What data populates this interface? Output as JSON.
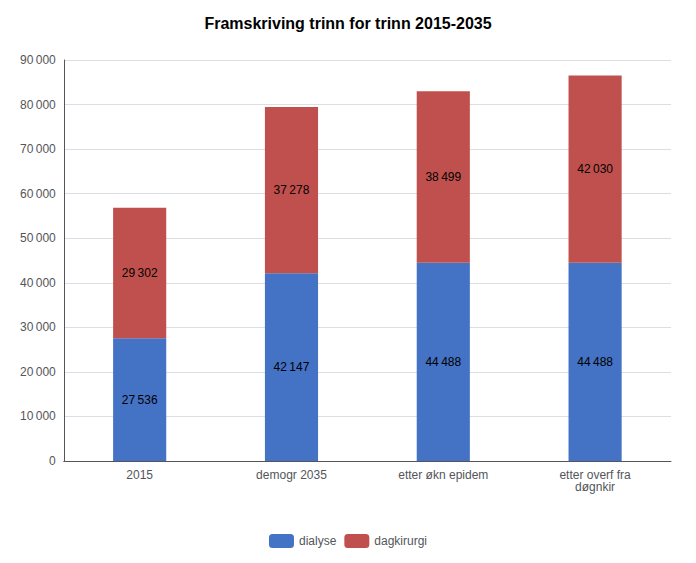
{
  "chart_data": {
    "type": "bar",
    "title": "Framskriving trinn for trinn 2015-2035",
    "categories": [
      "2015",
      "demogr 2035",
      "etter økn epidem",
      "etter overf fra\ndøgnkir"
    ],
    "series": [
      {
        "name": "dialyse",
        "color": "#4472C4",
        "values": [
          27536,
          42147,
          44488,
          44488
        ],
        "value_labels": [
          "27 536",
          "42 147",
          "44 488",
          "44 488"
        ]
      },
      {
        "name": "dagkirurgi",
        "color": "#C0504D",
        "values": [
          29302,
          37278,
          38499,
          42030
        ],
        "value_labels": [
          "29 302",
          "37 278",
          "38 499",
          "42 030"
        ]
      }
    ],
    "stacked": true,
    "data_labels": true,
    "ylim": [
      0,
      90000
    ],
    "yticks": [
      0,
      {
        "value": 10000,
        "label": "10 000"
      },
      {
        "value": 20000,
        "label": "20 000"
      },
      {
        "value": 30000,
        "label": "30 000"
      },
      {
        "value": 40000,
        "label": "40 000"
      },
      {
        "value": 50000,
        "label": "50 000"
      },
      {
        "value": 60000,
        "label": "60 000"
      },
      {
        "value": 70000,
        "label": "70 000"
      },
      {
        "value": 80000,
        "label": "80 000"
      },
      {
        "value": 90000,
        "label": "90 000"
      }
    ],
    "grid": true,
    "legend": "bottom"
  }
}
